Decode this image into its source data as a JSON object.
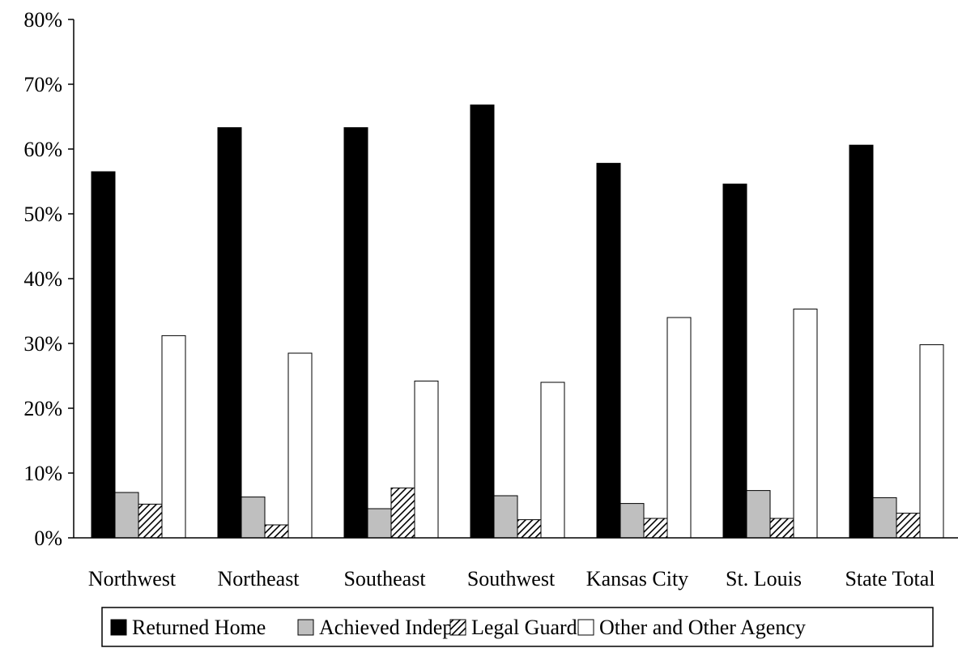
{
  "chart_data": {
    "type": "bar",
    "title": "",
    "xlabel": "",
    "ylabel": "",
    "ylim": [
      0,
      80
    ],
    "yticks": [
      "0%",
      "10%",
      "20%",
      "30%",
      "40%",
      "50%",
      "60%",
      "70%",
      "80%"
    ],
    "categories": [
      "Northwest",
      "Northeast",
      "Southeast",
      "Southwest",
      "Kansas City",
      "St. Louis",
      "State Total"
    ],
    "series": [
      {
        "name": "Returned Home",
        "fill": "#000000",
        "pattern": "solid",
        "values": [
          56.5,
          63.3,
          63.3,
          66.8,
          57.8,
          54.6,
          60.6
        ]
      },
      {
        "name": "Achieved Indep.",
        "fill": "#bfbfbf",
        "pattern": "solid",
        "values": [
          7.0,
          6.3,
          4.5,
          6.5,
          5.3,
          7.3,
          6.2
        ]
      },
      {
        "name": "Legal Guard.",
        "fill": "#ffffff",
        "pattern": "diagonal-hatch",
        "values": [
          5.2,
          2.0,
          7.7,
          2.8,
          3.0,
          3.0,
          3.8
        ]
      },
      {
        "name": "Other and Other Agency",
        "fill": "#ffffff",
        "pattern": "solid",
        "values": [
          31.2,
          28.5,
          24.2,
          24.0,
          34.0,
          35.3,
          29.8
        ]
      }
    ],
    "legend_position": "bottom",
    "grid": false
  }
}
